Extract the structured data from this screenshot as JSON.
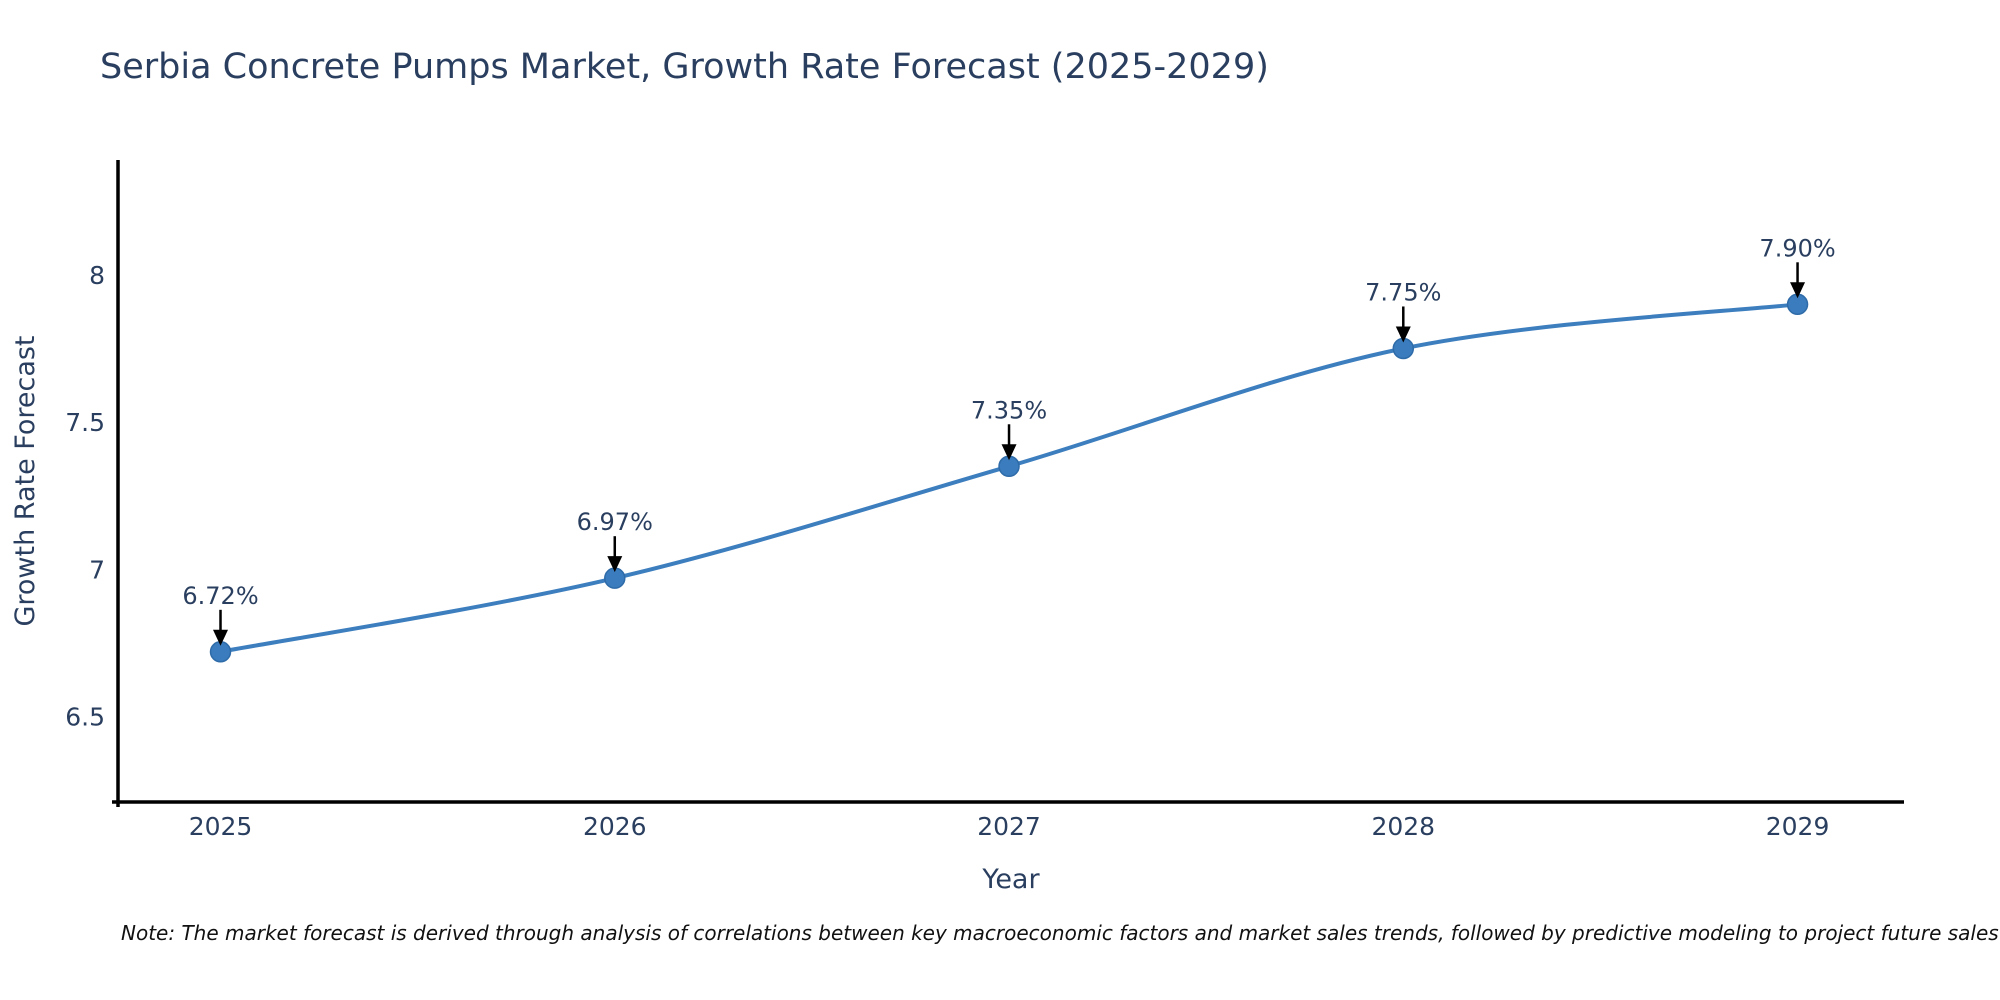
{
  "figure": {
    "note": "Note: The market forecast is derived through analysis of correlations between key macroeconomic factors and market sales trends, followed by predictive modeling to project future sales"
  },
  "chart_data": {
    "type": "line",
    "title": "Serbia Concrete Pumps Market, Growth Rate Forecast (2025-2029)",
    "xlabel": "Year",
    "ylabel": "Growth Rate Forecast",
    "x": [
      2025,
      2026,
      2027,
      2028,
      2029
    ],
    "series": [
      {
        "name": "Growth Rate Forecast",
        "values": [
          6.72,
          6.97,
          7.35,
          7.75,
          7.9
        ]
      }
    ],
    "point_labels": [
      "6.72%",
      "6.97%",
      "7.35%",
      "7.75%",
      "7.90%"
    ],
    "x_tick_labels": [
      "2025",
      "2026",
      "2027",
      "2028",
      "2029"
    ],
    "y_ticks": [
      6.5,
      7,
      7.5,
      8
    ],
    "y_tick_labels": [
      "6.5",
      "7",
      "7.5",
      "8"
    ],
    "xlim": [
      2024.74,
      2029.27
    ],
    "ylim": [
      6.21,
      8.39
    ],
    "grid": false,
    "legend": "none",
    "line_shape": "spline",
    "annotations": "arrow-down-to-point",
    "colors": {
      "line": "#3d7ebf",
      "marker": "#3a7cbd",
      "marker_edge": "#2e6ba8",
      "axis": "#000000",
      "text": "#2a3f5f",
      "arrow": "#000000",
      "note_text": "#111111",
      "background": "#ffffff"
    }
  }
}
